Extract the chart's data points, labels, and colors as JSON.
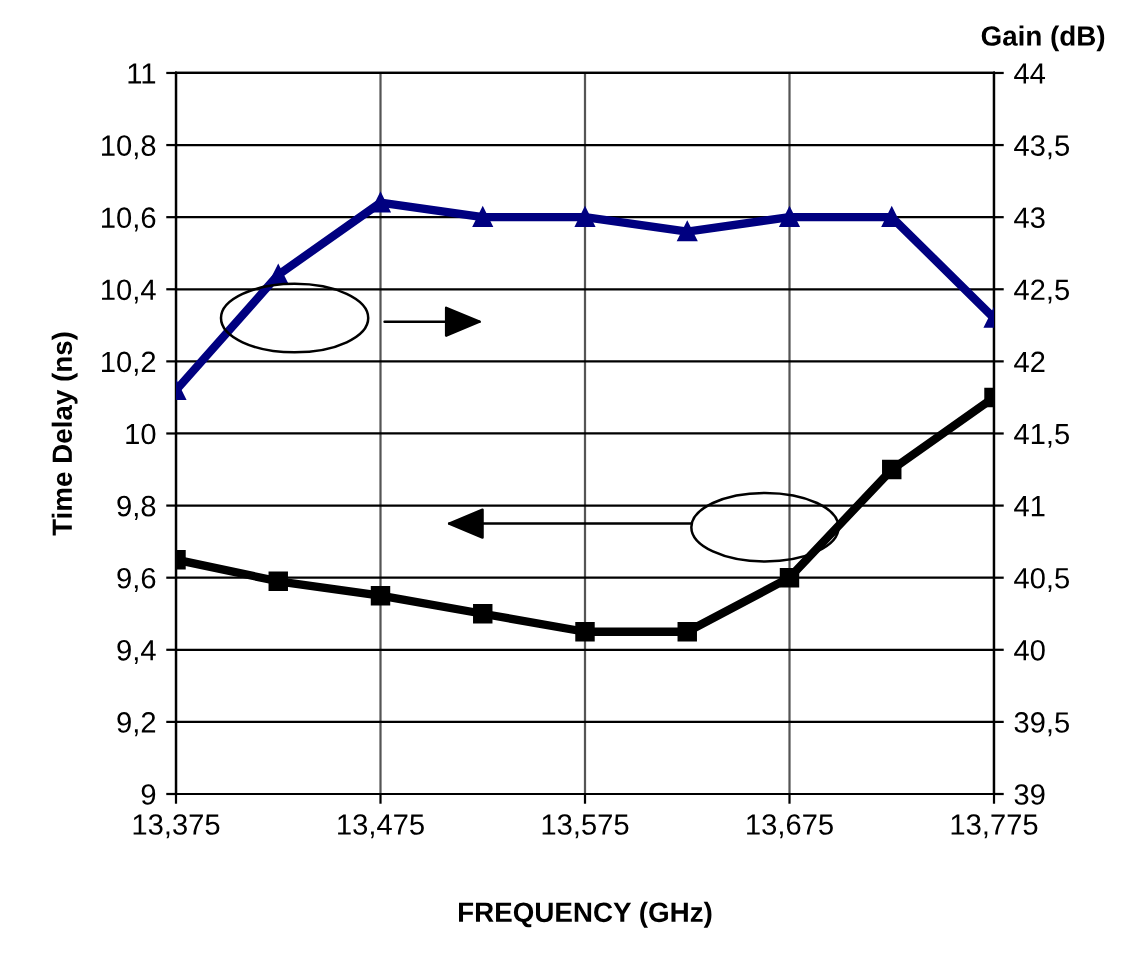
{
  "chart_data": {
    "type": "line",
    "xlabel": "FREQUENCY (GHz)",
    "ylabel": "Time Delay (ns)",
    "y2label": "Gain (dB)",
    "categories": [
      "13,375",
      null,
      "13,475",
      null,
      "13,575",
      null,
      "13,675",
      null,
      "13,775"
    ],
    "series": [
      {
        "color": "#000080",
        "axis": "y2",
        "marker": "triangle",
        "values": [
          41.8,
          42.6,
          43.1,
          43.0,
          43.0,
          42.9,
          43.0,
          43.0,
          42.3
        ]
      },
      {
        "color": "#000000",
        "marker": "square",
        "values": [
          9.65,
          9.59,
          9.55,
          9.5,
          9.45,
          9.45,
          9.6,
          9.9,
          10.1
        ]
      }
    ],
    "ylim": [
      9,
      11
    ],
    "yticks": [
      9,
      {
        "value": 9.2,
        "label": "9,2"
      },
      {
        "value": 9.4,
        "label": "9,4"
      },
      {
        "value": 9.6,
        "label": "9,6"
      },
      {
        "value": 9.8,
        "label": "9,8"
      },
      10,
      {
        "value": 10.2,
        "label": "10,2"
      },
      {
        "value": 10.4,
        "label": "10,4"
      },
      {
        "value": 10.6,
        "label": "10,6"
      },
      {
        "value": 10.8,
        "label": "10,8"
      },
      11
    ],
    "y2lim": [
      39,
      44
    ],
    "y2ticks": [
      39,
      {
        "value": 39.5,
        "label": "39,5"
      },
      40,
      {
        "value": 40.5,
        "label": "40,5"
      },
      41,
      {
        "value": 41.5,
        "label": "41,5"
      },
      42,
      {
        "value": 42.5,
        "label": "42,5"
      },
      43,
      {
        "value": 43.5,
        "label": "43,5"
      },
      44
    ],
    "grid": true,
    "line_style": "solid"
  }
}
